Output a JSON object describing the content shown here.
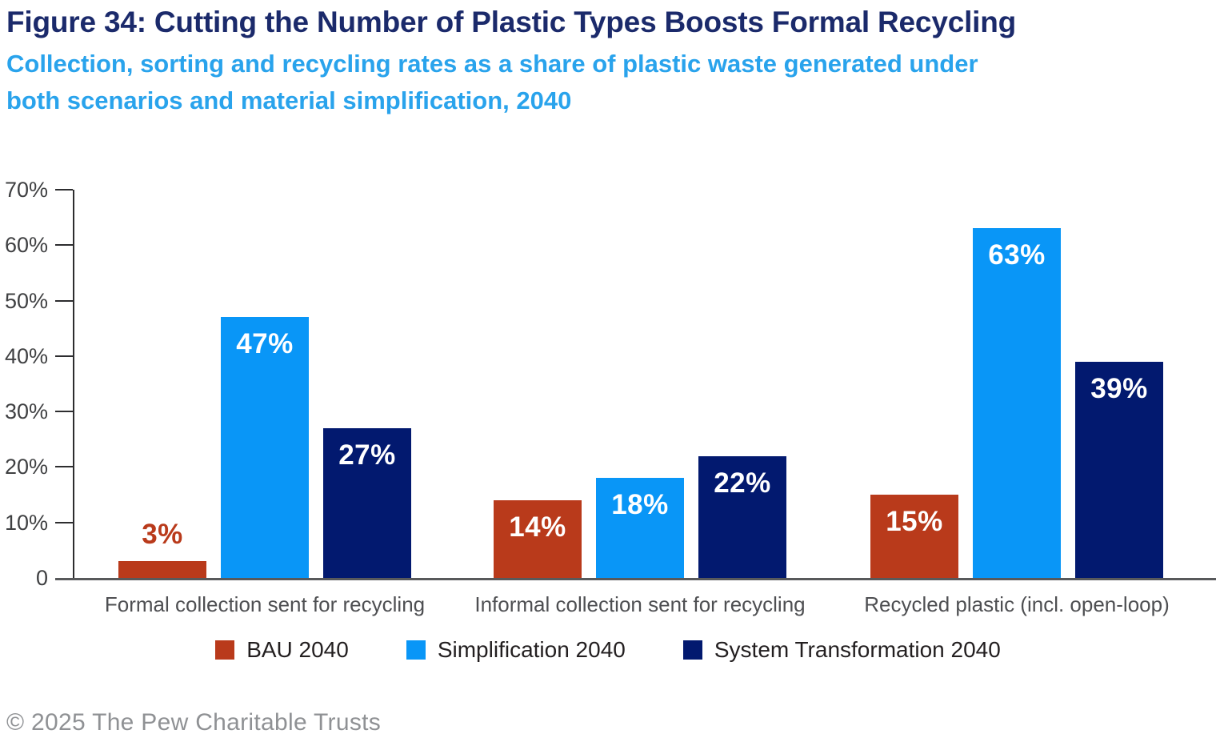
{
  "title": "Figure 34: Cutting the Number of Plastic Types Boosts Formal Recycling",
  "subtitle_line1": "Collection, sorting and recycling rates as a share of plastic waste generated under",
  "subtitle_line2": "both scenarios and material simplification, 2040",
  "footer": "© 2025 The Pew Charitable Trusts",
  "colors": {
    "title_navy": "#1b2a6b",
    "subtitle_blue": "#29a3ec",
    "bau_red": "#b93a1b",
    "simplification_blue": "#0996f7",
    "system_transformation_navy": "#02196f"
  },
  "chart_data": {
    "type": "bar",
    "title": "Figure 34: Cutting the Number of Plastic Types Boosts Formal Recycling",
    "subtitle": "Collection, sorting and recycling rates as a share of plastic waste generated under both scenarios and material simplification, 2040",
    "categories": [
      "Formal collection sent for recycling",
      "Informal collection sent for recycling",
      "Recycled plastic (incl. open-loop)"
    ],
    "series": [
      {
        "name": "BAU 2040",
        "color": "#b93a1b",
        "values": [
          3,
          14,
          15
        ]
      },
      {
        "name": "Simplification 2040",
        "color": "#0996f7",
        "values": [
          47,
          18,
          63
        ]
      },
      {
        "name": "System Transformation 2040",
        "color": "#02196f",
        "values": [
          27,
          22,
          39
        ]
      }
    ],
    "value_unit": "%",
    "xlabel": "",
    "ylabel": "",
    "ylim": [
      0,
      70
    ],
    "yticks": [
      0,
      10,
      20,
      30,
      40,
      50,
      60,
      70
    ],
    "ytick_labels": [
      "0",
      "10%",
      "20%",
      "30%",
      "40%",
      "50%",
      "60%",
      "70%"
    ],
    "grid": false,
    "legend_position": "bottom"
  }
}
